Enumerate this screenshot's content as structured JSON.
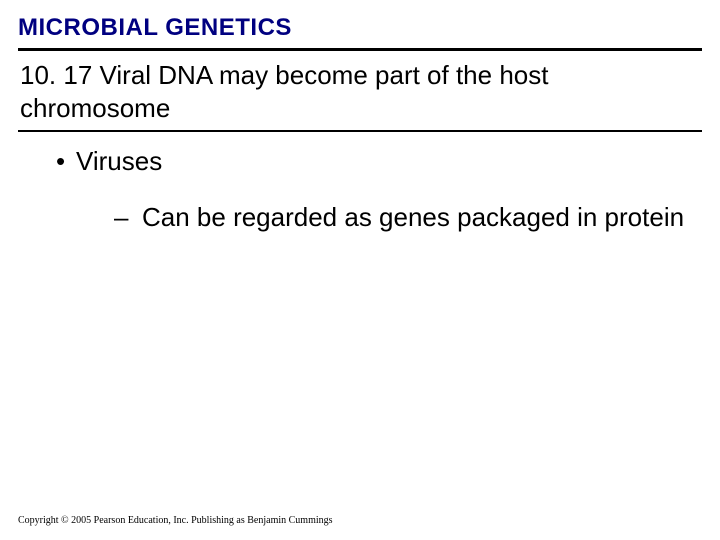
{
  "colors": {
    "chapter_title": "#000080",
    "text": "#000000",
    "rule": "#000000",
    "background": "#ffffff"
  },
  "typography": {
    "chapter_title_fontsize": 24,
    "section_title_fontsize": 26,
    "bullet_fontsize": 26,
    "copyright_fontsize": 10,
    "chapter_title_weight": "bold"
  },
  "header": {
    "chapter_title": "MICROBIAL GENETICS"
  },
  "section": {
    "number": "10. 17",
    "title": "10. 17 Viral DNA may become part of the host chromosome"
  },
  "bullets": [
    {
      "level": 1,
      "marker": "•",
      "text": "Viruses",
      "children": [
        {
          "level": 2,
          "marker": "–",
          "text": "Can be regarded as genes packaged in protein"
        }
      ]
    }
  ],
  "bullet_flat": {
    "b1_marker": "•",
    "b1_text": "Viruses",
    "b1_1_marker": "–",
    "b1_1_text": "Can be regarded as genes packaged in protein"
  },
  "footer": {
    "copyright": "Copyright © 2005 Pearson Education, Inc. Publishing as Benjamin Cummings"
  }
}
